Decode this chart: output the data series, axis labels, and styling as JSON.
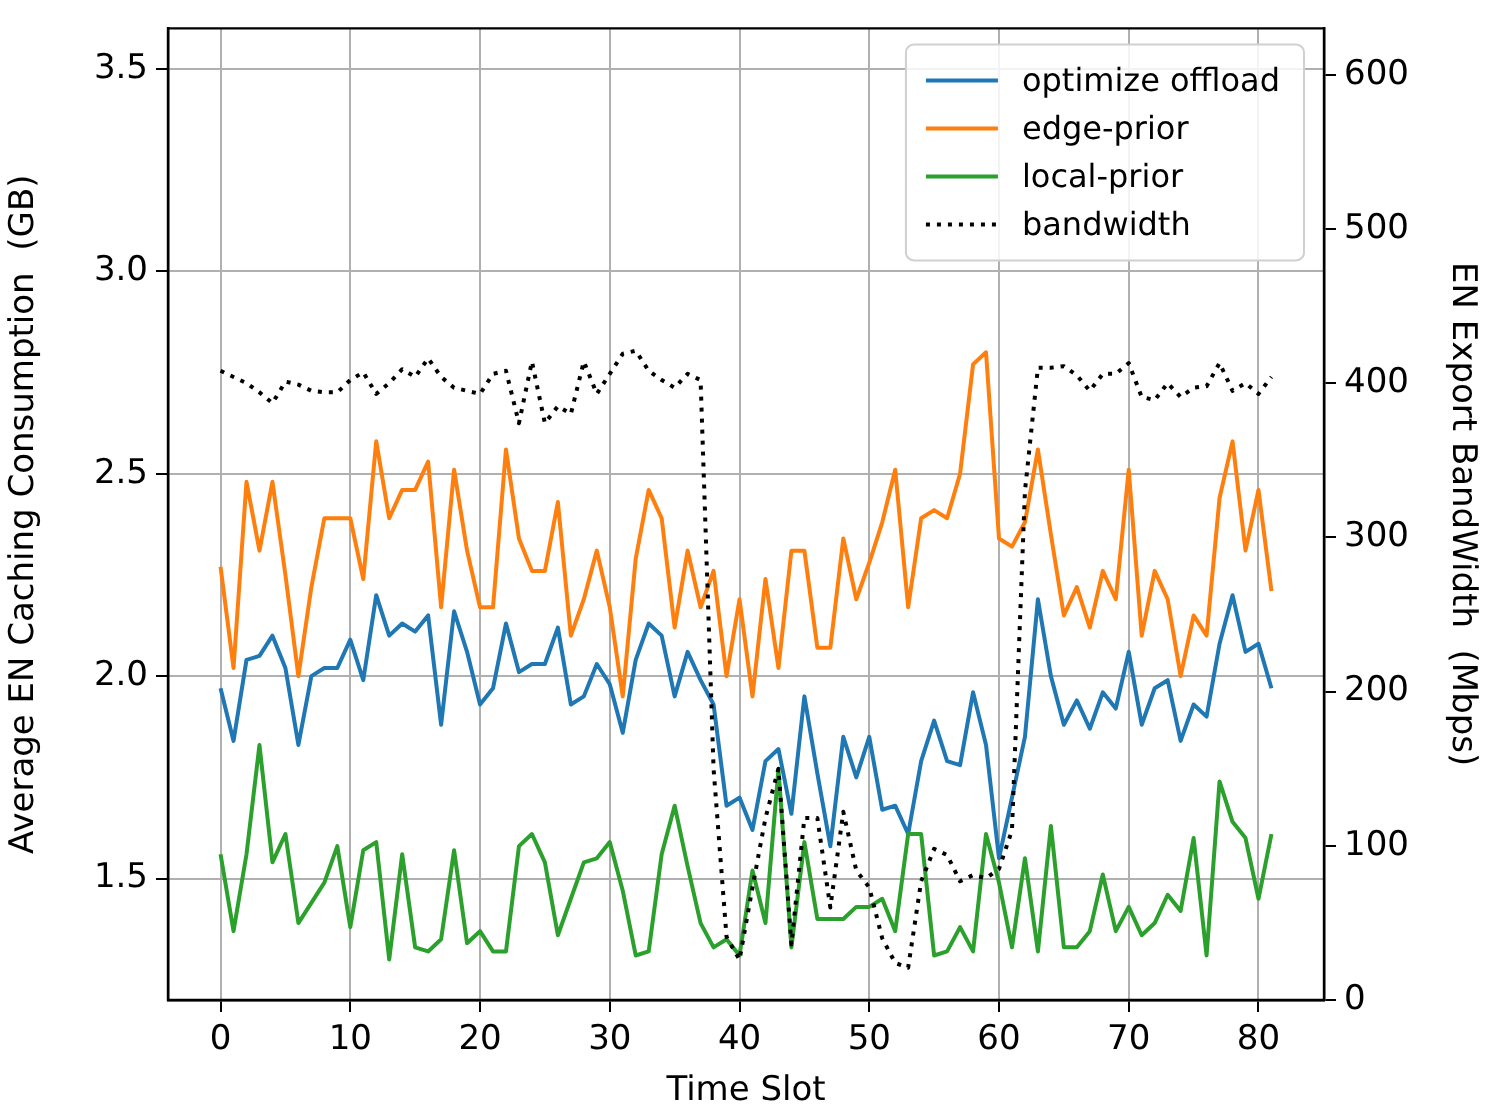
{
  "chart_data": {
    "type": "line",
    "xlabel": "Time Slot",
    "ylabel": "Average EN Caching Consumption  (GB)",
    "y2label": "EN Export BandWidth  (Mbps)",
    "x": [
      0,
      1,
      2,
      3,
      4,
      5,
      6,
      7,
      8,
      9,
      10,
      11,
      12,
      13,
      14,
      15,
      16,
      17,
      18,
      19,
      20,
      21,
      22,
      23,
      24,
      25,
      26,
      27,
      28,
      29,
      30,
      31,
      32,
      33,
      34,
      35,
      36,
      37,
      38,
      39,
      40,
      41,
      42,
      43,
      44,
      45,
      46,
      47,
      48,
      49,
      50,
      51,
      52,
      53,
      54,
      55,
      56,
      57,
      58,
      59,
      60,
      61,
      62,
      63,
      64,
      65,
      66,
      67,
      68,
      69,
      70,
      71,
      72,
      73,
      74,
      75,
      76,
      77,
      78,
      79,
      80,
      81
    ],
    "series": [
      {
        "name": "optimize offload",
        "color": "#1f77b4",
        "values": [
          1.97,
          1.84,
          2.04,
          2.05,
          2.1,
          2.02,
          1.83,
          2.0,
          2.02,
          2.02,
          2.09,
          1.99,
          2.2,
          2.1,
          2.13,
          2.11,
          2.15,
          1.88,
          2.16,
          2.06,
          1.93,
          1.97,
          2.13,
          2.01,
          2.03,
          2.03,
          2.12,
          1.93,
          1.95,
          2.03,
          1.98,
          1.86,
          2.04,
          2.13,
          2.1,
          1.95,
          2.06,
          1.99,
          1.93,
          1.68,
          1.7,
          1.62,
          1.79,
          1.82,
          1.66,
          1.95,
          1.76,
          1.58,
          1.85,
          1.75,
          1.85,
          1.67,
          1.68,
          1.61,
          1.79,
          1.89,
          1.79,
          1.78,
          1.96,
          1.83,
          1.55,
          1.7,
          1.85,
          2.19,
          2.0,
          1.88,
          1.94,
          1.87,
          1.96,
          1.92,
          2.06,
          1.88,
          1.97,
          1.99,
          1.84,
          1.93,
          1.9,
          2.08,
          2.2,
          2.06,
          2.08,
          1.97
        ]
      },
      {
        "name": "edge-prior",
        "color": "#ff7f0e",
        "values": [
          2.27,
          2.02,
          2.48,
          2.31,
          2.48,
          2.25,
          2.0,
          2.22,
          2.39,
          2.39,
          2.39,
          2.24,
          2.58,
          2.39,
          2.46,
          2.46,
          2.53,
          2.17,
          2.51,
          2.31,
          2.17,
          2.17,
          2.56,
          2.34,
          2.26,
          2.26,
          2.43,
          2.1,
          2.19,
          2.31,
          2.17,
          1.95,
          2.29,
          2.46,
          2.39,
          2.12,
          2.31,
          2.17,
          2.26,
          2.0,
          2.19,
          1.95,
          2.24,
          2.02,
          2.31,
          2.31,
          2.07,
          2.07,
          2.34,
          2.19,
          2.28,
          2.38,
          2.51,
          2.17,
          2.39,
          2.41,
          2.39,
          2.5,
          2.77,
          2.8,
          2.34,
          2.32,
          2.38,
          2.56,
          2.35,
          2.15,
          2.22,
          2.12,
          2.26,
          2.19,
          2.51,
          2.1,
          2.26,
          2.19,
          2.0,
          2.15,
          2.1,
          2.44,
          2.58,
          2.31,
          2.46,
          2.21
        ]
      },
      {
        "name": "local-prior",
        "color": "#2ca02c",
        "values": [
          1.56,
          1.37,
          1.56,
          1.83,
          1.54,
          1.61,
          1.39,
          1.44,
          1.49,
          1.58,
          1.38,
          1.57,
          1.59,
          1.3,
          1.56,
          1.33,
          1.32,
          1.35,
          1.57,
          1.34,
          1.37,
          1.32,
          1.32,
          1.58,
          1.61,
          1.54,
          1.36,
          1.45,
          1.54,
          1.55,
          1.59,
          1.47,
          1.31,
          1.32,
          1.56,
          1.68,
          1.53,
          1.39,
          1.33,
          1.35,
          1.31,
          1.52,
          1.39,
          1.77,
          1.33,
          1.59,
          1.4,
          1.4,
          1.4,
          1.43,
          1.43,
          1.45,
          1.37,
          1.61,
          1.61,
          1.31,
          1.32,
          1.38,
          1.32,
          1.61,
          1.49,
          1.33,
          1.55,
          1.32,
          1.63,
          1.33,
          1.33,
          1.37,
          1.51,
          1.37,
          1.43,
          1.36,
          1.39,
          1.46,
          1.42,
          1.6,
          1.31,
          1.74,
          1.64,
          1.6,
          1.45,
          1.61
        ]
      },
      {
        "name": "bandwidth",
        "color": "#000000",
        "axis": "y2",
        "line_style": "dotted",
        "values": [
          408,
          404,
          400,
          394,
          387,
          401,
          399,
          395,
          394,
          394,
          402,
          407,
          393,
          400,
          409,
          404,
          416,
          404,
          397,
          395,
          393,
          406,
          408,
          374,
          414,
          374,
          385,
          380,
          414,
          393,
          406,
          419,
          421,
          408,
          402,
          397,
          406,
          402,
          150,
          41,
          26,
          73,
          118,
          150,
          36,
          118,
          118,
          60,
          122,
          84,
          73,
          40,
          24,
          21,
          77,
          98,
          94,
          77,
          81,
          79,
          85,
          110,
          330,
          410,
          410,
          411,
          405,
          395,
          406,
          406,
          413,
          391,
          389,
          400,
          391,
          397,
          398,
          413,
          395,
          400,
          393,
          404
        ]
      }
    ],
    "xlim": [
      -4.05,
      85.05
    ],
    "xticks": [
      0,
      10,
      20,
      30,
      40,
      50,
      60,
      70,
      80
    ],
    "ylim": [
      1.2,
      3.6
    ],
    "yticks": [
      {
        "value": 1.5,
        "label": "1.5"
      },
      {
        "value": 2,
        "label": "2.0"
      },
      {
        "value": 2.5,
        "label": "2.5"
      },
      {
        "value": 3,
        "label": "3.0"
      },
      {
        "value": 3.5,
        "label": "3.5"
      }
    ],
    "y2lim": [
      0,
      630
    ],
    "y2ticks": [
      0,
      100,
      200,
      300,
      400,
      500,
      600
    ],
    "grid": true,
    "legend": "top right",
    "marker": "none",
    "line_style": "solid"
  }
}
